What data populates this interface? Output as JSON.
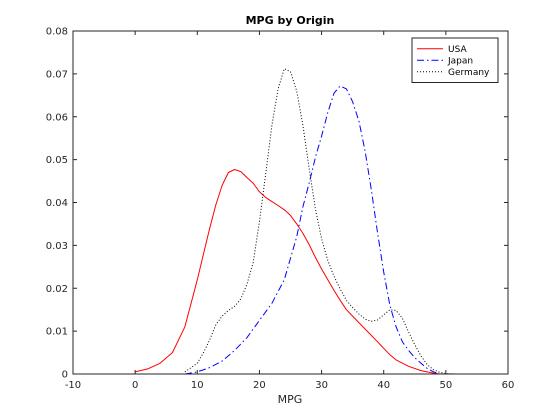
{
  "chart_data": {
    "type": "line",
    "title": "MPG by Origin",
    "xlabel": "MPG",
    "ylabel": "",
    "xlim": [
      -10,
      60
    ],
    "ylim": [
      0,
      0.08
    ],
    "xticks": [
      "-10",
      "0",
      "10",
      "20",
      "30",
      "40",
      "50",
      "60"
    ],
    "yticks": [
      "0",
      "0.01",
      "0.02",
      "0.03",
      "0.04",
      "0.05",
      "0.06",
      "0.07",
      "0.08"
    ],
    "grid": false,
    "legend_position": "top-right",
    "series": [
      {
        "name": "USA",
        "color": "#ff0000",
        "style": "solid",
        "x": [
          0,
          2,
          4,
          6,
          8,
          10,
          11,
          12,
          13,
          14,
          15,
          16,
          17,
          18,
          19,
          20,
          21,
          22,
          23,
          24,
          25,
          26,
          27,
          28,
          29,
          30,
          31,
          32,
          33,
          34,
          35,
          36,
          37,
          38,
          39,
          40,
          41,
          42,
          44,
          46,
          48,
          49
        ],
        "y": [
          0.0005,
          0.0012,
          0.0025,
          0.005,
          0.011,
          0.022,
          0.028,
          0.034,
          0.0395,
          0.044,
          0.047,
          0.0477,
          0.0472,
          0.0458,
          0.0445,
          0.0425,
          0.0412,
          0.0402,
          0.0393,
          0.0383,
          0.037,
          0.035,
          0.0328,
          0.0302,
          0.0272,
          0.0245,
          0.022,
          0.0195,
          0.0172,
          0.015,
          0.0135,
          0.012,
          0.0105,
          0.009,
          0.0075,
          0.006,
          0.0045,
          0.0033,
          0.0018,
          0.0008,
          0.0002,
          0.0
        ]
      },
      {
        "name": "Japan",
        "color": "#0000ff",
        "style": "dashdot",
        "x": [
          8,
          10,
          12,
          14,
          16,
          18,
          20,
          22,
          24,
          26,
          27,
          28,
          29,
          30,
          31,
          32,
          33,
          34,
          35,
          36,
          37,
          38,
          39,
          40,
          41,
          42,
          43,
          44,
          45,
          46,
          47,
          48,
          49
        ],
        "y": [
          0.0,
          0.0005,
          0.0015,
          0.003,
          0.0055,
          0.0085,
          0.0125,
          0.0165,
          0.022,
          0.032,
          0.039,
          0.0445,
          0.0505,
          0.0555,
          0.061,
          0.0655,
          0.0672,
          0.0665,
          0.0635,
          0.059,
          0.052,
          0.043,
          0.033,
          0.0238,
          0.016,
          0.011,
          0.0075,
          0.0055,
          0.0038,
          0.0025,
          0.0013,
          0.0005,
          0.0
        ]
      },
      {
        "name": "Germany",
        "color": "#000000",
        "style": "dotted",
        "x": [
          8,
          10,
          11,
          12,
          13,
          14,
          15,
          16,
          17,
          18,
          19,
          20,
          21,
          22,
          23,
          24,
          25,
          26,
          27,
          28,
          29,
          30,
          31,
          32,
          33,
          34,
          35,
          36,
          37,
          38,
          39,
          40,
          41,
          42,
          43,
          44,
          45,
          46,
          47,
          48,
          49,
          50,
          52
        ],
        "y": [
          0.0005,
          0.0025,
          0.005,
          0.008,
          0.0115,
          0.0135,
          0.0148,
          0.0158,
          0.0175,
          0.021,
          0.026,
          0.0355,
          0.0465,
          0.058,
          0.0665,
          0.0712,
          0.0705,
          0.066,
          0.058,
          0.048,
          0.0385,
          0.0315,
          0.0265,
          0.0228,
          0.0198,
          0.0172,
          0.0155,
          0.014,
          0.0128,
          0.0123,
          0.0126,
          0.0138,
          0.015,
          0.0148,
          0.013,
          0.0098,
          0.0068,
          0.0042,
          0.0022,
          0.001,
          0.0004,
          0.0001,
          0.0
        ]
      }
    ]
  }
}
